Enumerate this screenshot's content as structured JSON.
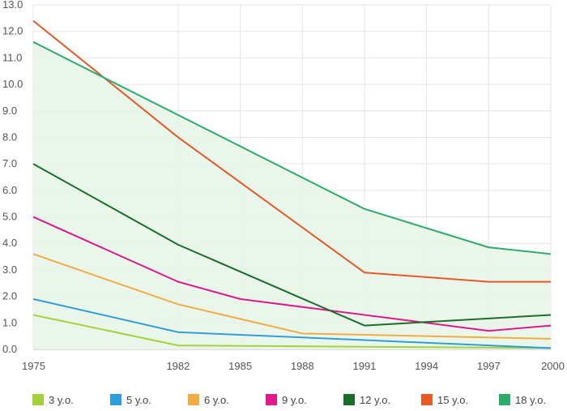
{
  "chart_data": {
    "type": "line",
    "x": [
      "1975",
      "1982",
      "1985",
      "1988",
      "1991",
      "1994",
      "1997",
      "2000"
    ],
    "x_years": [
      1975,
      1982,
      1985,
      1988,
      1991,
      1994,
      1997,
      2000
    ],
    "ylim": [
      0,
      13
    ],
    "y_ticks": [
      "0.0",
      "1.0",
      "2.0",
      "3.0",
      "4.0",
      "5.0",
      "6.0",
      "7.0",
      "8.0",
      "9.0",
      "10.0",
      "11.0",
      "12.0",
      "13.0"
    ],
    "grid": true,
    "legend_position": "bottom",
    "shaded_area_under": "18 y.o.",
    "series": [
      {
        "name": "3 y.o.",
        "color": "#a5d13d",
        "points": [
          [
            1975,
            1.3
          ],
          [
            1982,
            0.15
          ],
          [
            1991,
            0.1
          ],
          [
            2000,
            0.05
          ]
        ]
      },
      {
        "name": "5 y.o.",
        "color": "#2f9fdc",
        "points": [
          [
            1975,
            1.9
          ],
          [
            1982,
            0.65
          ],
          [
            1991,
            0.35
          ],
          [
            2000,
            0.05
          ]
        ]
      },
      {
        "name": "6 y.o.",
        "color": "#f0ad45",
        "points": [
          [
            1975,
            3.6
          ],
          [
            1982,
            1.7
          ],
          [
            1988,
            0.6
          ],
          [
            2000,
            0.4
          ]
        ]
      },
      {
        "name": "9 y.o.",
        "color": "#e0198c",
        "points": [
          [
            1975,
            5.0
          ],
          [
            1982,
            2.55
          ],
          [
            1985,
            1.9
          ],
          [
            1997,
            0.7
          ],
          [
            2000,
            0.9
          ]
        ]
      },
      {
        "name": "12 y.o.",
        "color": "#1b6e2a",
        "points": [
          [
            1975,
            7.0
          ],
          [
            1982,
            3.95
          ],
          [
            1991,
            0.9
          ],
          [
            2000,
            1.3
          ]
        ]
      },
      {
        "name": "15 y.o.",
        "color": "#e55a27",
        "points": [
          [
            1975,
            12.4
          ],
          [
            1982,
            8.0
          ],
          [
            1991,
            2.9
          ],
          [
            1997,
            2.55
          ],
          [
            2000,
            2.55
          ]
        ]
      },
      {
        "name": "18 y.o.",
        "color": "#2dab6b",
        "points": [
          [
            1975,
            11.6
          ],
          [
            1991,
            5.3
          ],
          [
            1997,
            3.85
          ],
          [
            2000,
            3.6
          ]
        ]
      }
    ]
  }
}
